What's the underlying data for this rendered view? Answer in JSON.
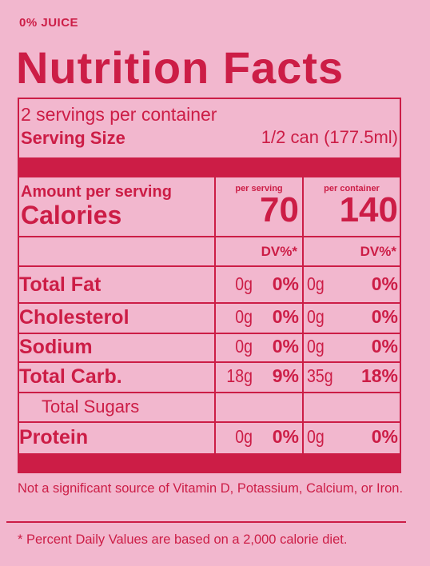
{
  "header": {
    "tag": "0% JUICE",
    "title": "Nutrition Facts"
  },
  "servings": {
    "per_container": "2 servings per container",
    "size_label": "Serving Size",
    "size_value": "1/2 can (177.5ml)"
  },
  "calories": {
    "amount_label": "Amount per serving",
    "label": "Calories",
    "per_serving_label": "per serving",
    "per_serving": 70,
    "per_container_label": "per container",
    "per_container": 140
  },
  "dv_headers": [
    "DV%*",
    "DV%*"
  ],
  "nutrients": [
    {
      "name": "Total Fat",
      "serving_amount": "0g",
      "serving_dv": "0%",
      "container_amount": "0g",
      "container_dv": "0%"
    },
    {
      "name": "Cholesterol",
      "serving_amount": "0g",
      "serving_dv": "0%",
      "container_amount": "0g",
      "container_dv": "0%"
    },
    {
      "name": "Sodium",
      "serving_amount": "0g",
      "serving_dv": "0%",
      "container_amount": "0g",
      "container_dv": "0%"
    },
    {
      "name": "Total Carb.",
      "serving_amount": "18g",
      "serving_dv": "9%",
      "container_amount": "35g",
      "container_dv": "18%"
    },
    {
      "name": "Total Sugars"
    },
    {
      "name": "Protein",
      "serving_amount": "0g",
      "serving_dv": "0%",
      "container_amount": "0g",
      "container_dv": "0%"
    }
  ],
  "footnotes": [
    "Not a significant source of Vitamin D, Potassium, Calcium, or Iron.",
    "* Percent Daily Values are based on a 2,000 calorie diet."
  ]
}
